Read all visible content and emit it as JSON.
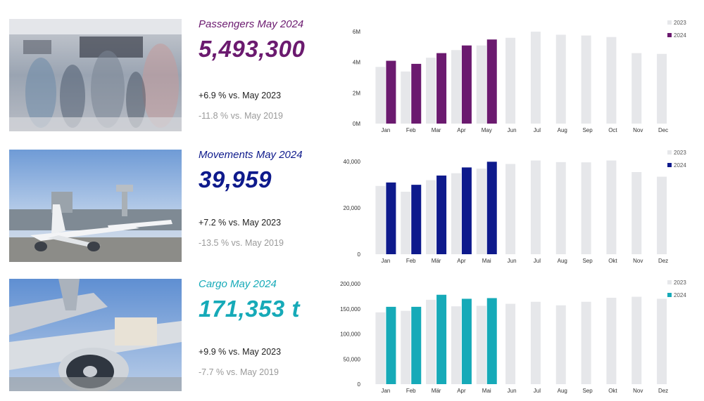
{
  "colors": {
    "passengers": "#6b1a6f",
    "movements": "#0e1a8c",
    "cargo": "#16aab8",
    "year2023": "#e6e7ea"
  },
  "panels": [
    {
      "id": "passengers",
      "title": "Passengers May 2024",
      "value": "5,493,300",
      "comparison_2023": "+6.9 % vs. May 2023",
      "comparison_2019": "-11.8 % vs. May 2019",
      "photo": "airport-terminal-crowd"
    },
    {
      "id": "movements",
      "title": "Movements May 2024",
      "value": "39,959",
      "comparison_2023": "+7.2 % vs. May 2023",
      "comparison_2019": "-13.5 % vs. May 2019",
      "photo": "aircraft-at-terminal"
    },
    {
      "id": "cargo",
      "title": "Cargo May 2024",
      "value": "171,353 t",
      "comparison_2023": "+9.9 % vs. May 2023",
      "comparison_2019": "-7.7 % vs. May 2019",
      "photo": "cargo-aircraft-engine"
    }
  ],
  "chart_data": [
    {
      "type": "bar",
      "categories": [
        "Jan",
        "Feb",
        "Mar",
        "Apr",
        "May",
        "Jun",
        "Jul",
        "Aug",
        "Sep",
        "Oct",
        "Nov",
        "Dec"
      ],
      "series": [
        {
          "name": "2023",
          "values": [
            3.7,
            3.4,
            4.3,
            4.8,
            5.1,
            5.6,
            6.0,
            5.8,
            5.75,
            5.65,
            4.6,
            4.55
          ]
        },
        {
          "name": "2024",
          "values": [
            4.1,
            3.9,
            4.6,
            5.1,
            5.49,
            null,
            null,
            null,
            null,
            null,
            null,
            null
          ]
        }
      ],
      "yticks": [
        "0M",
        "2M",
        "4M",
        "6M"
      ],
      "ytick_values": [
        0,
        2,
        4,
        6
      ],
      "ylim": [
        0,
        6.6
      ],
      "legend": [
        "2023",
        "2024"
      ],
      "legend_position": "top-right",
      "grid": false
    },
    {
      "type": "bar",
      "categories": [
        "Jan",
        "Feb",
        "Mär",
        "Apr",
        "Mai",
        "Jun",
        "Jul",
        "Aug",
        "Sep",
        "Okt",
        "Nov",
        "Dez"
      ],
      "series": [
        {
          "name": "2023",
          "values": [
            29500,
            27000,
            32000,
            35000,
            37000,
            39000,
            40500,
            39800,
            39700,
            40500,
            35500,
            33500
          ]
        },
        {
          "name": "2024",
          "values": [
            31000,
            30000,
            34000,
            37500,
            39959,
            null,
            null,
            null,
            null,
            null,
            null,
            null
          ]
        }
      ],
      "yticks": [
        "0",
        "20,000",
        "40,000"
      ],
      "ytick_values": [
        0,
        20000,
        40000
      ],
      "ylim": [
        0,
        44000
      ],
      "legend": [
        "2023",
        "2024"
      ],
      "legend_position": "top-right",
      "grid": false
    },
    {
      "type": "bar",
      "categories": [
        "Jan",
        "Feb",
        "Mär",
        "Apr",
        "Mai",
        "Jun",
        "Jul",
        "Aug",
        "Sep",
        "Okt",
        "Nov",
        "Dez"
      ],
      "series": [
        {
          "name": "2023",
          "values": [
            143000,
            146000,
            168000,
            155000,
            156000,
            160000,
            164000,
            157000,
            164000,
            172000,
            174000,
            170000
          ]
        },
        {
          "name": "2024",
          "values": [
            154000,
            154000,
            178000,
            170000,
            171353,
            null,
            null,
            null,
            null,
            null,
            null,
            null
          ]
        }
      ],
      "yticks": [
        "0",
        "50,000",
        "100,000",
        "150,000",
        "200,000"
      ],
      "ytick_values": [
        0,
        50000,
        100000,
        150000,
        200000
      ],
      "ylim": [
        0,
        200000
      ],
      "legend": [
        "2023",
        "2024"
      ],
      "legend_position": "top-right",
      "grid": false
    }
  ]
}
